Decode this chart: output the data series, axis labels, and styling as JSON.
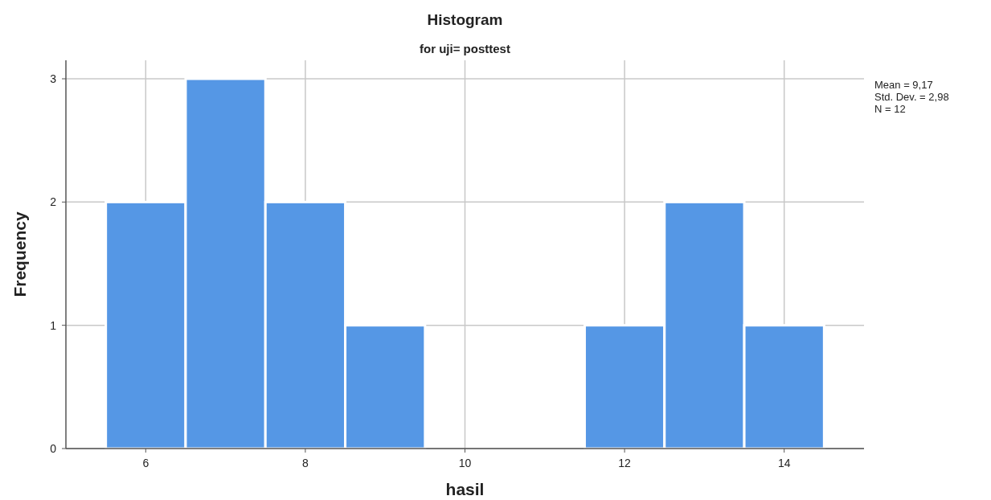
{
  "chart_data": {
    "type": "histogram",
    "title": "Histogram",
    "subtitle": "for uji= posttest",
    "xlabel": "hasil",
    "ylabel": "Frequency",
    "bins": [
      5.5,
      6.5,
      7.5,
      8.5,
      9.5,
      10.5,
      11.5,
      12.5,
      13.5,
      14.5
    ],
    "values": [
      2,
      3,
      2,
      1,
      0,
      0,
      1,
      2,
      1
    ],
    "color": "#5597e5",
    "xlim": [
      5,
      15
    ],
    "xticks": [
      6,
      8,
      10,
      12,
      14
    ],
    "ylim": [
      0,
      3.15
    ],
    "yticks": [
      0,
      1,
      2,
      3
    ],
    "grid": true,
    "annotations": [
      "Mean = 9,17",
      "Std. Dev. = 2,98",
      "N = 12"
    ]
  }
}
